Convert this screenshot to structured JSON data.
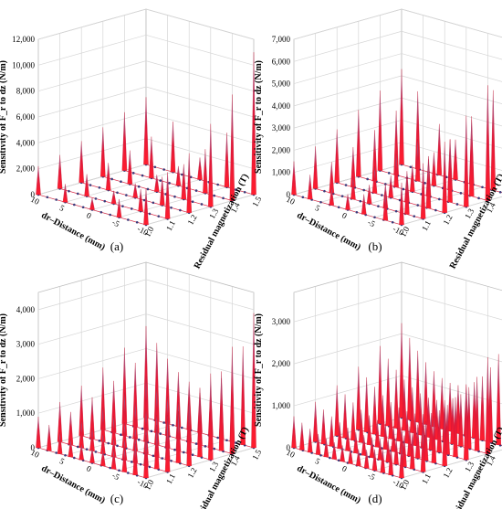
{
  "figure": {
    "captions": [
      "(a)",
      "(b)",
      "(c)",
      "(d)"
    ]
  },
  "colors": {
    "spike_base": "#ff1d2e",
    "spike_mid": "#e0193a",
    "spike_tip": "#7d86c4",
    "grid": "#d6d6d6",
    "axis": "#000000"
  },
  "chart_data": [
    {
      "type": "3d-waterfall",
      "caption": "(a)",
      "zlabel": "Sensitivity of F_r to dz (N/m)",
      "xlabel": "dr–Distance (mm)",
      "ylabel": "Residual magnetization (T)",
      "zticks": [
        "0",
        "2,000",
        "4,000",
        "6,000",
        "8,000",
        "10,000",
        "12,000"
      ],
      "zlim": [
        0,
        12000
      ],
      "xticks": [
        "10",
        "5",
        "0",
        "-5",
        "-10"
      ],
      "xlim": [
        10,
        -10
      ],
      "yticks": [
        "1.0",
        "1.1",
        "1.2",
        "1.3",
        "1.4",
        "1.5"
      ],
      "ylim": [
        1.0,
        1.5
      ],
      "grid": true,
      "series": [
        {
          "y": 1.0,
          "peaks": [
            [
              10,
              2200
            ],
            [
              5,
              1400
            ],
            [
              0,
              900
            ],
            [
              -5,
              1400
            ],
            [
              -10,
              2800
            ]
          ]
        },
        {
          "y": 1.1,
          "peaks": [
            [
              10,
              2600
            ],
            [
              5,
              1700
            ],
            [
              0,
              1000
            ],
            [
              -5,
              1700
            ],
            [
              -10,
              3600
            ]
          ]
        },
        {
          "y": 1.2,
          "peaks": [
            [
              10,
              3200
            ],
            [
              5,
              2100
            ],
            [
              0,
              1100
            ],
            [
              -5,
              2200
            ],
            [
              -10,
              4600
            ]
          ]
        },
        {
          "y": 1.3,
          "peaks": [
            [
              10,
              3800
            ],
            [
              5,
              2600
            ],
            [
              0,
              1300
            ],
            [
              -5,
              2700
            ],
            [
              -10,
              6400
            ]
          ]
        },
        {
          "y": 1.4,
          "peaks": [
            [
              10,
              4500
            ],
            [
              5,
              3200
            ],
            [
              0,
              1500
            ],
            [
              -5,
              3400
            ],
            [
              -10,
              8200
            ]
          ]
        },
        {
          "y": 1.5,
          "peaks": [
            [
              10,
              5200
            ],
            [
              5,
              3900
            ],
            [
              0,
              1700
            ],
            [
              -5,
              4200
            ],
            [
              -10,
              11000
            ]
          ]
        }
      ]
    },
    {
      "type": "3d-waterfall",
      "caption": "(b)",
      "zlabel": "Sensitivity of F_r to dz (N/m)",
      "xlabel": "dr–Distance (mm)",
      "ylabel": "Residual magnetization (T)",
      "zticks": [
        "0",
        "1,000",
        "2,000",
        "3,000",
        "4,000",
        "5,000",
        "6,000",
        "7,000"
      ],
      "zlim": [
        0,
        7000
      ],
      "xticks": [
        "10",
        "5",
        "0",
        "-5",
        "-10"
      ],
      "xlim": [
        10,
        -10
      ],
      "yticks": [
        "1.0",
        "1.1",
        "1.2",
        "1.3",
        "1.4",
        "1.5"
      ],
      "ylim": [
        1.0,
        1.5
      ],
      "grid": true,
      "series": [
        {
          "y": 1.0,
          "peaks": [
            [
              10,
              1500
            ],
            [
              7,
              1100
            ],
            [
              3,
              800
            ],
            [
              0,
              700
            ],
            [
              -3,
              900
            ],
            [
              -7,
              1300
            ],
            [
              -10,
              1900
            ]
          ]
        },
        {
          "y": 1.1,
          "peaks": [
            [
              10,
              1900
            ],
            [
              7,
              1400
            ],
            [
              3,
              1000
            ],
            [
              0,
              850
            ],
            [
              -3,
              1100
            ],
            [
              -7,
              1700
            ],
            [
              -10,
              2500
            ]
          ]
        },
        {
          "y": 1.2,
          "peaks": [
            [
              10,
              2400
            ],
            [
              7,
              1800
            ],
            [
              3,
              1200
            ],
            [
              0,
              1000
            ],
            [
              -3,
              1400
            ],
            [
              -7,
              2200
            ],
            [
              -10,
              3200
            ]
          ]
        },
        {
          "y": 1.3,
          "peaks": [
            [
              10,
              3000
            ],
            [
              7,
              2300
            ],
            [
              3,
              1500
            ],
            [
              0,
              1200
            ],
            [
              -3,
              1800
            ],
            [
              -7,
              2800
            ],
            [
              -10,
              4100
            ]
          ]
        },
        {
          "y": 1.4,
          "peaks": [
            [
              10,
              3600
            ],
            [
              7,
              2900
            ],
            [
              3,
              1900
            ],
            [
              0,
              1500
            ],
            [
              -3,
              2300
            ],
            [
              -7,
              3600
            ],
            [
              -10,
              5200
            ]
          ]
        },
        {
          "y": 1.5,
          "peaks": [
            [
              10,
              4300
            ],
            [
              7,
              3500
            ],
            [
              3,
              2300
            ],
            [
              0,
              1800
            ],
            [
              -3,
              2900
            ],
            [
              -7,
              4500
            ],
            [
              -10,
              6500
            ]
          ]
        }
      ]
    },
    {
      "type": "3d-waterfall",
      "caption": "(c)",
      "zlabel": "Sensitivity of F_r to dz (N/m)",
      "xlabel": "dr–Distance (mm)",
      "ylabel": "Residual magnetization (T)",
      "zticks": [
        "0",
        "1,000",
        "2,000",
        "3,000",
        "4,000"
      ],
      "zlim": [
        0,
        4500
      ],
      "xticks": [
        "10",
        "5",
        "0",
        "-5",
        "-10"
      ],
      "xlim": [
        10,
        -10
      ],
      "yticks": [
        "1.0",
        "1.1",
        "1.2",
        "1.3",
        "1.4",
        "1.5"
      ],
      "ylim": [
        1.0,
        1.5
      ],
      "grid": true,
      "series": [
        {
          "y": 1.0,
          "peaks": [
            [
              10,
              900
            ],
            [
              8,
              750
            ],
            [
              6,
              620
            ],
            [
              4,
              520
            ],
            [
              2,
              460
            ],
            [
              0,
              430
            ],
            [
              -2,
              470
            ],
            [
              -4,
              560
            ],
            [
              -6,
              700
            ],
            [
              -8,
              900
            ],
            [
              -10,
              1200
            ]
          ]
        },
        {
          "y": 1.1,
          "peaks": [
            [
              10,
              1150
            ],
            [
              8,
              950
            ],
            [
              6,
              790
            ],
            [
              4,
              660
            ],
            [
              2,
              580
            ],
            [
              0,
              540
            ],
            [
              -2,
              600
            ],
            [
              -4,
              720
            ],
            [
              -6,
              900
            ],
            [
              -8,
              1150
            ],
            [
              -10,
              1550
            ]
          ]
        },
        {
          "y": 1.2,
          "peaks": [
            [
              10,
              1450
            ],
            [
              8,
              1200
            ],
            [
              6,
              1000
            ],
            [
              4,
              840
            ],
            [
              2,
              740
            ],
            [
              0,
              690
            ],
            [
              -2,
              760
            ],
            [
              -4,
              920
            ],
            [
              -6,
              1150
            ],
            [
              -8,
              1480
            ],
            [
              -10,
              2000
            ]
          ]
        },
        {
          "y": 1.3,
          "peaks": [
            [
              10,
              1800
            ],
            [
              8,
              1500
            ],
            [
              6,
              1250
            ],
            [
              4,
              1050
            ],
            [
              2,
              920
            ],
            [
              0,
              860
            ],
            [
              -2,
              950
            ],
            [
              -4,
              1150
            ],
            [
              -6,
              1450
            ],
            [
              -8,
              1850
            ],
            [
              -10,
              2500
            ]
          ]
        },
        {
          "y": 1.4,
          "peaks": [
            [
              10,
              2200
            ],
            [
              8,
              1850
            ],
            [
              6,
              1550
            ],
            [
              4,
              1300
            ],
            [
              2,
              1140
            ],
            [
              0,
              1060
            ],
            [
              -2,
              1180
            ],
            [
              -4,
              1430
            ],
            [
              -6,
              1800
            ],
            [
              -8,
              2300
            ],
            [
              -10,
              3100
            ]
          ]
        },
        {
          "y": 1.5,
          "peaks": [
            [
              10,
              2650
            ],
            [
              8,
              2250
            ],
            [
              6,
              1880
            ],
            [
              4,
              1580
            ],
            [
              2,
              1390
            ],
            [
              0,
              1300
            ],
            [
              -2,
              1440
            ],
            [
              -4,
              1750
            ],
            [
              -6,
              2200
            ],
            [
              -8,
              2850
            ],
            [
              -10,
              3900
            ]
          ]
        }
      ]
    },
    {
      "type": "3d-waterfall",
      "caption": "(d)",
      "zlabel": "Sensitivity of F_r to dz (N/m)",
      "xlabel": "dr–Distance (mm)",
      "ylabel": "Residual magnetization (T)",
      "zticks": [
        "0",
        "1,000",
        "2,000",
        "3,000"
      ],
      "zlim": [
        0,
        3700
      ],
      "xticks": [
        "10",
        "5",
        "0",
        "-5",
        "-10"
      ],
      "xlim": [
        10,
        -10
      ],
      "yticks": [
        "1.0",
        "1.1",
        "1.2",
        "1.3",
        "1.4",
        "1.5"
      ],
      "ylim": [
        1.0,
        1.5
      ],
      "grid": true,
      "series": [
        {
          "y": 1.0,
          "peaks": [
            [
              10,
              750
            ],
            [
              8.5,
              650
            ],
            [
              7,
              560
            ],
            [
              5.5,
              490
            ],
            [
              4,
              440
            ],
            [
              2.5,
              400
            ],
            [
              1,
              380
            ],
            [
              -0.5,
              380
            ],
            [
              -2,
              400
            ],
            [
              -3.5,
              440
            ],
            [
              -5,
              500
            ],
            [
              -6.5,
              580
            ],
            [
              -8,
              690
            ],
            [
              -10,
              850
            ]
          ]
        },
        {
          "y": 1.1,
          "peaks": [
            [
              10,
              950
            ],
            [
              8.5,
              820
            ],
            [
              7,
              710
            ],
            [
              5.5,
              620
            ],
            [
              4,
              550
            ],
            [
              2.5,
              500
            ],
            [
              1,
              480
            ],
            [
              -0.5,
              480
            ],
            [
              -2,
              500
            ],
            [
              -3.5,
              550
            ],
            [
              -5,
              630
            ],
            [
              -6.5,
              740
            ],
            [
              -8,
              880
            ],
            [
              -10,
              1100
            ]
          ]
        },
        {
          "y": 1.2,
          "peaks": [
            [
              10,
              1200
            ],
            [
              8.5,
              1040
            ],
            [
              7,
              900
            ],
            [
              5.5,
              780
            ],
            [
              4,
              700
            ],
            [
              2.5,
              640
            ],
            [
              1,
              610
            ],
            [
              -0.5,
              610
            ],
            [
              -2,
              640
            ],
            [
              -3.5,
              700
            ],
            [
              -5,
              800
            ],
            [
              -6.5,
              940
            ],
            [
              -8,
              1120
            ],
            [
              -10,
              1400
            ]
          ]
        },
        {
          "y": 1.3,
          "peaks": [
            [
              10,
              1500
            ],
            [
              8.5,
              1300
            ],
            [
              7,
              1130
            ],
            [
              5.5,
              980
            ],
            [
              4,
              870
            ],
            [
              2.5,
              800
            ],
            [
              1,
              760
            ],
            [
              -0.5,
              760
            ],
            [
              -2,
              800
            ],
            [
              -3.5,
              880
            ],
            [
              -5,
              1000
            ],
            [
              -6.5,
              1180
            ],
            [
              -8,
              1420
            ],
            [
              -10,
              1800
            ]
          ]
        },
        {
          "y": 1.4,
          "peaks": [
            [
              10,
              1850
            ],
            [
              8.5,
              1600
            ],
            [
              7,
              1390
            ],
            [
              5.5,
              1210
            ],
            [
              4,
              1080
            ],
            [
              2.5,
              990
            ],
            [
              1,
              940
            ],
            [
              -0.5,
              940
            ],
            [
              -2,
              990
            ],
            [
              -3.5,
              1090
            ],
            [
              -5,
              1240
            ],
            [
              -6.5,
              1460
            ],
            [
              -8,
              1760
            ],
            [
              -10,
              2300
            ]
          ]
        },
        {
          "y": 1.5,
          "peaks": [
            [
              10,
              2250
            ],
            [
              8.5,
              1950
            ],
            [
              7,
              1700
            ],
            [
              5.5,
              1480
            ],
            [
              4,
              1320
            ],
            [
              2.5,
              1210
            ],
            [
              1,
              1150
            ],
            [
              -0.5,
              1150
            ],
            [
              -2,
              1210
            ],
            [
              -3.5,
              1330
            ],
            [
              -5,
              1520
            ],
            [
              -6.5,
              1790
            ],
            [
              -8,
              2160
            ],
            [
              -10,
              3200
            ]
          ]
        }
      ]
    }
  ]
}
